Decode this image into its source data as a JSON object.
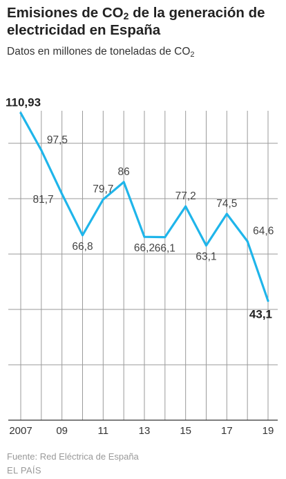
{
  "header": {
    "title_pre": "Emisiones de CO",
    "title_sub": "2",
    "title_post": " de la generación de electricidad en España",
    "subtitle_pre": "Datos en millones de toneladas de CO",
    "subtitle_sub": "2"
  },
  "chart_data": {
    "type": "line",
    "x": [
      2007,
      2008,
      2009,
      2010,
      2011,
      2012,
      2013,
      2014,
      2015,
      2016,
      2017,
      2018,
      2019
    ],
    "values": [
      110.93,
      97.5,
      81.7,
      66.8,
      79.7,
      86,
      66.2,
      66.1,
      77.2,
      63.1,
      74.5,
      64.6,
      43.1
    ],
    "data_labels": [
      "110,93",
      "97,5",
      "81,7",
      "66,8",
      "79,7",
      "86",
      "66,2",
      "66,1",
      "77,2",
      "63,1",
      "74,5",
      "64,6",
      "43,1"
    ],
    "x_tick_labels": [
      "2007",
      "09",
      "11",
      "13",
      "15",
      "17",
      "19"
    ],
    "x_tick_values": [
      2007,
      2009,
      2011,
      2013,
      2015,
      2017,
      2019
    ],
    "ylim": [
      0,
      120
    ],
    "y_gridlines": [
      0,
      20,
      40,
      60,
      80,
      100
    ],
    "grid": true,
    "line_color": "#1fb5ea",
    "title": "Emisiones de CO2 de la generación de electricidad en España",
    "subtitle": "Datos en millones de toneladas de CO2"
  },
  "footer": {
    "source": "Fuente: Red Eléctrica de España",
    "brand": "EL PAÍS"
  }
}
